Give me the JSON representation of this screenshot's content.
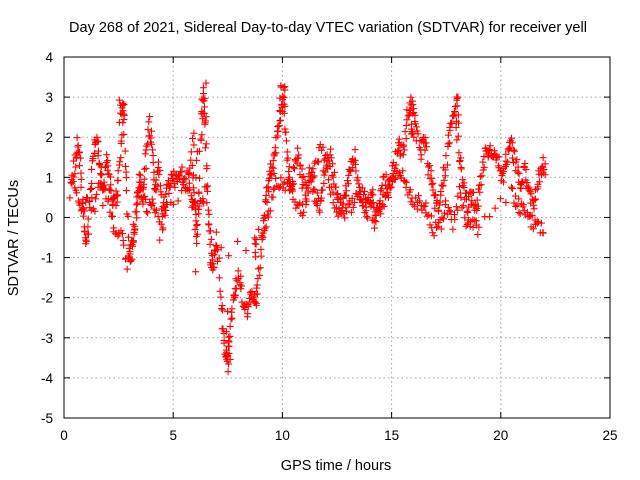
{
  "chart_data": {
    "type": "scatter",
    "title": "Day 268 of 2021, Sidereal Day-to-day VTEC variation (SDTVAR) for receiver yell",
    "xlabel": "GPS time / hours",
    "ylabel": "SDTVAR / TECUs",
    "xlim": [
      0,
      25
    ],
    "ylim": [
      -5,
      4
    ],
    "x_ticks": [
      "0",
      "5",
      "10",
      "15",
      "20",
      "25"
    ],
    "y_ticks": [
      "-5",
      "-4",
      "-3",
      "-2",
      "-1",
      "0",
      "1",
      "2",
      "3",
      "4"
    ],
    "grid": true,
    "marker": "plus",
    "marker_color": "#ff0000",
    "series": [
      {
        "name": "SDTVAR",
        "trace": [
          [
            0.3,
            0.6
          ],
          [
            0.45,
            1.2
          ],
          [
            0.6,
            1.8
          ],
          [
            0.75,
            1.3
          ],
          [
            0.9,
            0.0
          ],
          [
            1.05,
            -0.8
          ],
          [
            1.2,
            0.6
          ],
          [
            1.35,
            1.6
          ],
          [
            1.5,
            1.9
          ],
          [
            1.65,
            1.4
          ],
          [
            1.8,
            0.5
          ],
          [
            1.95,
            1.5
          ],
          [
            2.1,
            0.8
          ],
          [
            2.25,
            0.4
          ],
          [
            2.4,
            0.5
          ],
          [
            2.55,
            1.2
          ],
          [
            2.7,
            3.0
          ],
          [
            2.85,
            0.8
          ],
          [
            3.0,
            -1.2
          ],
          [
            3.15,
            -0.6
          ],
          [
            3.3,
            0.2
          ],
          [
            3.45,
            1.0
          ],
          [
            3.6,
            0.4
          ],
          [
            3.75,
            1.5
          ],
          [
            3.9,
            2.3
          ],
          [
            4.05,
            1.8
          ],
          [
            4.2,
            0.6
          ],
          [
            4.35,
            1.4
          ],
          [
            4.5,
            0.0
          ],
          [
            4.65,
            0.5
          ],
          [
            4.8,
            0.8
          ],
          [
            5.0,
            1.0
          ],
          [
            5.2,
            0.9
          ],
          [
            5.4,
            1.1
          ],
          [
            5.6,
            0.8
          ],
          [
            5.8,
            1.5
          ],
          [
            6.0,
            0.4
          ],
          [
            6.1,
            -0.6
          ],
          [
            6.25,
            1.8
          ],
          [
            6.4,
            3.2
          ],
          [
            6.55,
            1.0
          ],
          [
            6.7,
            -1.0
          ],
          [
            6.85,
            -1.2
          ],
          [
            7.0,
            -0.4
          ],
          [
            7.2,
            -2.2
          ],
          [
            7.35,
            -3.2
          ],
          [
            7.5,
            -3.6
          ],
          [
            7.65,
            -2.6
          ],
          [
            7.8,
            -1.8
          ],
          [
            8.0,
            -1.4
          ],
          [
            8.2,
            -2.0
          ],
          [
            8.4,
            -2.5
          ],
          [
            8.6,
            -1.8
          ],
          [
            8.8,
            -2.0
          ],
          [
            9.0,
            -1.0
          ],
          [
            9.15,
            0.0
          ],
          [
            9.3,
            0.6
          ],
          [
            9.45,
            1.1
          ],
          [
            9.6,
            1.3
          ],
          [
            9.75,
            2.0
          ],
          [
            9.9,
            2.6
          ],
          [
            10.05,
            2.9
          ],
          [
            10.2,
            1.8
          ],
          [
            10.35,
            0.5
          ],
          [
            10.5,
            1.0
          ],
          [
            10.7,
            1.6
          ],
          [
            10.9,
            1.0
          ],
          [
            11.1,
            0.6
          ],
          [
            11.3,
            1.2
          ],
          [
            11.5,
            0.6
          ],
          [
            11.7,
            0.2
          ],
          [
            11.9,
            1.1
          ],
          [
            12.1,
            1.7
          ],
          [
            12.3,
            1.2
          ],
          [
            12.5,
            0.6
          ],
          [
            12.7,
            0.3
          ],
          [
            12.9,
            0.6
          ],
          [
            13.1,
            1.2
          ],
          [
            13.3,
            1.5
          ],
          [
            13.5,
            0.7
          ],
          [
            13.7,
            0.4
          ],
          [
            13.9,
            0.2
          ],
          [
            14.1,
            0.6
          ],
          [
            14.3,
            0.1
          ],
          [
            14.5,
            0.5
          ],
          [
            14.7,
            0.9
          ],
          [
            14.9,
            0.7
          ],
          [
            15.1,
            1.3
          ],
          [
            15.3,
            1.8
          ],
          [
            15.5,
            1.6
          ],
          [
            15.7,
            2.4
          ],
          [
            15.9,
            2.9
          ],
          [
            16.1,
            2.3
          ],
          [
            16.3,
            1.6
          ],
          [
            16.5,
            2.0
          ],
          [
            16.7,
            1.2
          ],
          [
            16.9,
            0.6
          ],
          [
            17.1,
            0.2
          ],
          [
            17.3,
            0.8
          ],
          [
            17.5,
            1.4
          ],
          [
            17.7,
            2.2
          ],
          [
            17.9,
            2.8
          ],
          [
            18.1,
            1.6
          ],
          [
            18.3,
            0.8
          ],
          [
            18.5,
            0.3
          ],
          [
            18.7,
            0.6
          ],
          [
            18.9,
            0.1
          ],
          [
            19.1,
            1.0
          ],
          [
            19.3,
            1.6
          ],
          [
            19.5,
            1.8
          ],
          [
            19.7,
            1.6
          ],
          [
            19.9,
            1.3
          ],
          [
            20.1,
            1.0
          ],
          [
            20.3,
            1.5
          ],
          [
            20.5,
            1.8
          ],
          [
            20.7,
            1.3
          ],
          [
            20.9,
            0.9
          ],
          [
            21.1,
            1.2
          ],
          [
            21.3,
            0.6
          ],
          [
            21.5,
            0.2
          ],
          [
            21.7,
            0.9
          ],
          [
            21.9,
            1.3
          ],
          [
            22.05,
            1.2
          ]
        ],
        "secondary_trace": [
          [
            0.5,
            0.9
          ],
          [
            0.8,
            0.2
          ],
          [
            1.1,
            0.4
          ],
          [
            1.4,
            0.3
          ],
          [
            1.7,
            0.9
          ],
          [
            2.0,
            0.4
          ],
          [
            2.3,
            -0.2
          ],
          [
            2.6,
            -0.4
          ],
          [
            2.9,
            -1.3
          ],
          [
            3.2,
            -0.3
          ],
          [
            3.5,
            0.8
          ],
          [
            3.8,
            0.2
          ],
          [
            4.1,
            0.5
          ],
          [
            4.4,
            -0.4
          ],
          [
            4.7,
            0.2
          ],
          [
            5.7,
            0.8
          ],
          [
            5.9,
            0.3
          ],
          [
            6.2,
            0.2
          ],
          [
            6.5,
            0.7
          ],
          [
            6.8,
            -1.0
          ],
          [
            9.1,
            -0.5
          ],
          [
            9.4,
            0.2
          ],
          [
            9.7,
            0.9
          ],
          [
            10.0,
            0.8
          ],
          [
            10.3,
            0.9
          ],
          [
            10.6,
            0.4
          ],
          [
            10.9,
            0.1
          ],
          [
            11.2,
            0.7
          ],
          [
            11.5,
            1.3
          ],
          [
            11.8,
            1.8
          ],
          [
            12.1,
            0.9
          ],
          [
            12.4,
            0.3
          ],
          [
            12.7,
            0.1
          ],
          [
            13.0,
            0.2
          ],
          [
            13.3,
            0.4
          ],
          [
            13.6,
            0.6
          ],
          [
            13.9,
            0.4
          ],
          [
            14.2,
            -0.1
          ],
          [
            14.5,
            0.2
          ],
          [
            14.8,
            0.5
          ],
          [
            15.1,
            0.9
          ],
          [
            15.4,
            1.1
          ],
          [
            15.7,
            0.8
          ],
          [
            16.0,
            0.3
          ],
          [
            16.3,
            0.4
          ],
          [
            16.6,
            0.2
          ],
          [
            16.9,
            -0.3
          ],
          [
            17.2,
            -0.2
          ],
          [
            17.5,
            0.3
          ],
          [
            17.8,
            -0.2
          ],
          [
            18.1,
            0.6
          ],
          [
            18.4,
            -0.1
          ],
          [
            18.7,
            -0.2
          ],
          [
            19.0,
            -0.3
          ],
          [
            20.5,
            0.6
          ],
          [
            20.8,
            0.3
          ],
          [
            21.1,
            0.2
          ],
          [
            21.4,
            -0.1
          ],
          [
            21.7,
            -0.2
          ],
          [
            22.0,
            -0.3
          ]
        ]
      }
    ]
  }
}
